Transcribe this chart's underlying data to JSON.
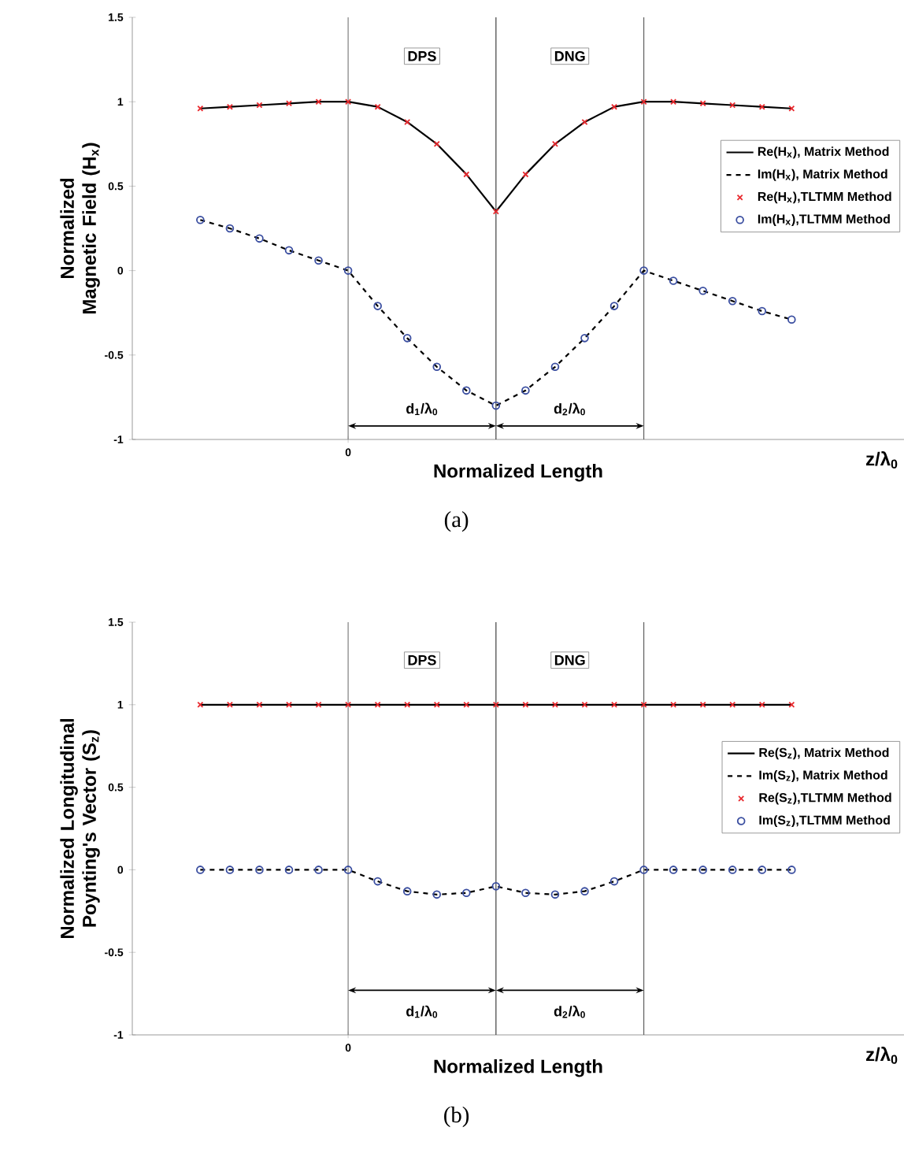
{
  "chart_data": [
    {
      "type": "line",
      "xlabel": "Normalized Length",
      "ylabel": "Normalized Magnetic Field (H$_{x}$)",
      "categories": [
        null,
        null,
        null,
        null,
        null,
        "0",
        null,
        null,
        null,
        null,
        null,
        null,
        null,
        null,
        null,
        null,
        null,
        null,
        null,
        null,
        null
      ],
      "ylim": [
        -1,
        1.5
      ],
      "yticks": [
        -1,
        -0.5,
        0,
        0.5,
        1,
        1.5
      ],
      "legend": "right",
      "series": [
        {
          "name": "Re(H$_{x}$), Matrix Method",
          "color": "#000000",
          "line_style": "solid",
          "marker": "none",
          "values": [
            0.96,
            0.97,
            0.98,
            0.99,
            1.0,
            1.0,
            0.97,
            0.88,
            0.75,
            0.57,
            0.35,
            0.57,
            0.75,
            0.88,
            0.97,
            1.0,
            1.0,
            0.99,
            0.98,
            0.97,
            0.96
          ]
        },
        {
          "name": "Im(H$_{x}$), Matrix Method",
          "color": "#000000",
          "line_style": "dashed",
          "marker": "none",
          "values": [
            0.3,
            0.25,
            0.19,
            0.12,
            0.06,
            0.0,
            -0.21,
            -0.4,
            -0.57,
            -0.71,
            -0.8,
            -0.71,
            -0.57,
            -0.4,
            -0.21,
            0.0,
            -0.06,
            -0.12,
            -0.18,
            -0.24,
            -0.29
          ]
        },
        {
          "name": "Re(H$_{x}$),TLTMM Method",
          "type": "scatter",
          "color": "#e8282d",
          "marker": "cross",
          "values": [
            0.96,
            0.97,
            0.98,
            0.99,
            1.0,
            1.0,
            0.97,
            0.88,
            0.75,
            0.57,
            0.35,
            0.57,
            0.75,
            0.88,
            0.97,
            1.0,
            1.0,
            0.99,
            0.98,
            0.97,
            0.96
          ]
        },
        {
          "name": "Im(H$_{x}$),TLTMM Method",
          "type": "scatter",
          "color": "#3a4ea0",
          "marker": "circle",
          "values": [
            0.3,
            0.25,
            0.19,
            0.12,
            0.06,
            0.0,
            -0.21,
            -0.4,
            -0.57,
            -0.71,
            -0.8,
            -0.71,
            -0.57,
            -0.4,
            -0.21,
            0.0,
            -0.06,
            -0.12,
            -0.18,
            -0.24,
            -0.29
          ]
        }
      ],
      "ref_lines": [
        {
          "axis": "x",
          "value": "0",
          "color": "#808080"
        }
      ],
      "annotations": [
        "DPS",
        "DNG",
        "d$_{1}$/λ$_{0}$",
        "d$_{2}$/λ$_{0}$",
        "z/λ$_{0}$",
        "(a)"
      ]
    },
    {
      "type": "line",
      "xlabel": "Normalized Length",
      "ylabel": "Normalized Longitudinal Poynting's Vector (S$_{z}$)",
      "categories": [
        null,
        null,
        null,
        null,
        null,
        "0",
        null,
        null,
        null,
        null,
        null,
        null,
        null,
        null,
        null,
        null,
        null,
        null,
        null,
        null,
        null
      ],
      "ylim": [
        -1,
        1.5
      ],
      "yticks": [
        -1,
        -0.5,
        0,
        0.5,
        1,
        1.5
      ],
      "legend": "right",
      "series": [
        {
          "name": "Re(S$_{z}$), Matrix Method",
          "color": "#000000",
          "line_style": "solid",
          "marker": "none",
          "values": [
            1,
            1,
            1,
            1,
            1,
            1,
            1,
            1,
            1,
            1,
            1,
            1,
            1,
            1,
            1,
            1,
            1,
            1,
            1,
            1,
            1
          ]
        },
        {
          "name": "Im(S$_{z}$), Matrix Method",
          "color": "#000000",
          "line_style": "dashed",
          "marker": "none",
          "values": [
            0,
            0,
            0,
            0,
            0,
            0,
            -0.07,
            -0.13,
            -0.15,
            -0.14,
            -0.1,
            -0.14,
            -0.15,
            -0.13,
            -0.07,
            0,
            0,
            0,
            0,
            0,
            0
          ]
        },
        {
          "name": "Re(S$_{z}$),TLTMM Method",
          "type": "scatter",
          "color": "#e8282d",
          "marker": "cross",
          "values": [
            1,
            1,
            1,
            1,
            1,
            1,
            1,
            1,
            1,
            1,
            1,
            1,
            1,
            1,
            1,
            1,
            1,
            1,
            1,
            1,
            1
          ]
        },
        {
          "name": "Im(S$_{z}$),TLTMM Method",
          "type": "scatter",
          "color": "#3a4ea0",
          "marker": "circle",
          "values": [
            0,
            0,
            0,
            0,
            0,
            0,
            -0.07,
            -0.13,
            -0.15,
            -0.14,
            -0.1,
            -0.14,
            -0.15,
            -0.13,
            -0.07,
            0,
            0,
            0,
            0,
            0,
            0
          ]
        }
      ],
      "ref_lines": [
        {
          "axis": "x",
          "value": "0",
          "color": "#808080"
        }
      ],
      "annotations": [
        "DPS",
        "DNG",
        "d$_{1}$/λ$_{0}$",
        "d$_{2}$/λ$_{0}$",
        "z/λ$_{0}$",
        "(b)"
      ]
    }
  ]
}
